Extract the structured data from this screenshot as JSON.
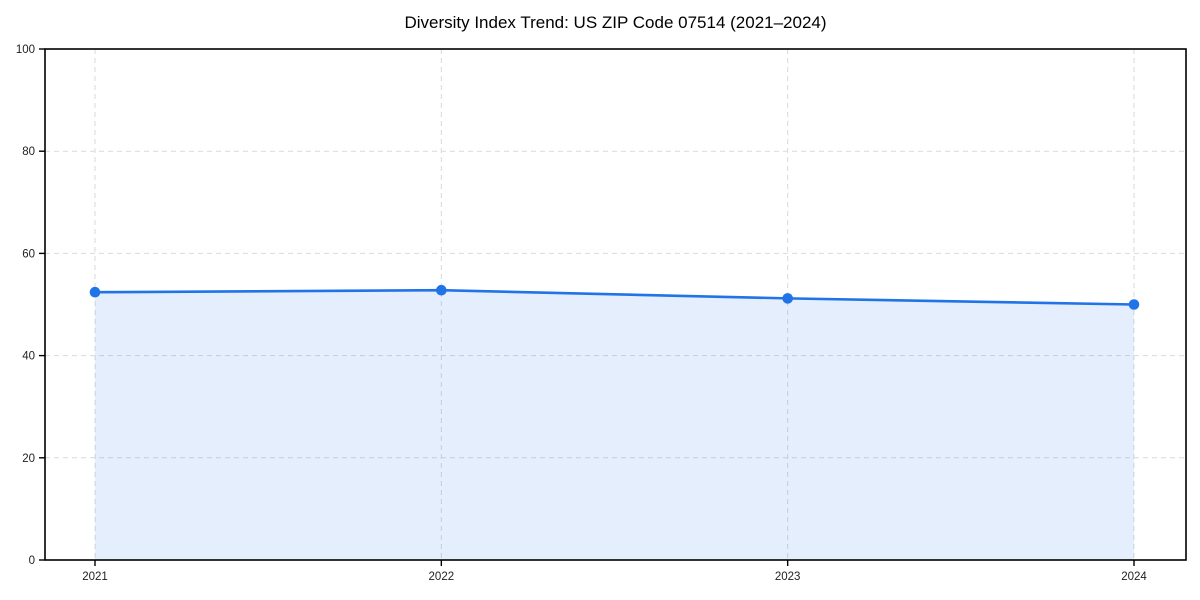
{
  "page": {
    "background": "#ffffff"
  },
  "chart_data": {
    "type": "area",
    "title": "Diversity Index Trend: US ZIP Code 07514 (2021–2024)",
    "categories": [
      "2021",
      "2022",
      "2023",
      "2024"
    ],
    "series": [
      {
        "name": "Diversity Index",
        "values": [
          52.4,
          52.8,
          51.2,
          50.0
        ]
      }
    ],
    "xlabel": "",
    "ylabel": "",
    "ylim": [
      0,
      100
    ],
    "yticks": [
      0,
      20,
      40,
      60,
      80,
      100
    ],
    "grid": true,
    "grid_style": "dashed",
    "legend": false,
    "marker": "circle",
    "colors": {
      "line": "#2173e8",
      "marker": "#2173e8",
      "fill": "#2173e8",
      "fill_opacity": 0.12,
      "grid": "#d9d9d9",
      "axis": "#000000",
      "text": "#1f1f1f",
      "background": "#ffffff"
    }
  }
}
